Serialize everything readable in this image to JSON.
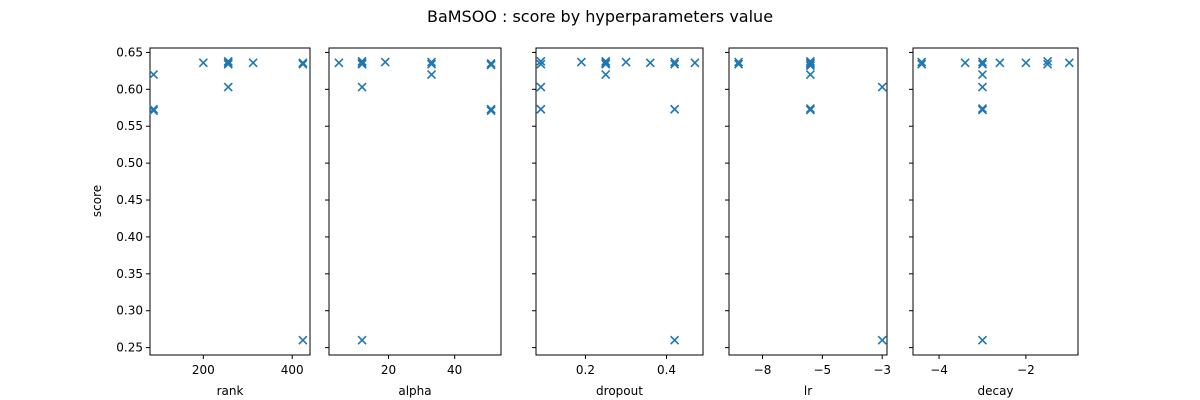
{
  "figure": {
    "title": "BaMSOO : score by hyperparameters value",
    "ylabel": "score",
    "marker_color": "#1f77b4"
  },
  "chart_data": [
    {
      "type": "scatter",
      "xlabel": "rank",
      "ylabel": "score",
      "xlim": [
        80,
        440
      ],
      "ylim": [
        0.24,
        0.656
      ],
      "xticks": [
        200,
        400
      ],
      "yticks": [
        0.25,
        0.3,
        0.35,
        0.4,
        0.45,
        0.5,
        0.55,
        0.6,
        0.65
      ],
      "points": [
        {
          "x": 88,
          "y": 0.62
        },
        {
          "x": 88,
          "y": 0.573
        },
        {
          "x": 88,
          "y": 0.571
        },
        {
          "x": 200,
          "y": 0.636
        },
        {
          "x": 256,
          "y": 0.638
        },
        {
          "x": 256,
          "y": 0.636
        },
        {
          "x": 256,
          "y": 0.634
        },
        {
          "x": 256,
          "y": 0.603
        },
        {
          "x": 312,
          "y": 0.636
        },
        {
          "x": 424,
          "y": 0.636
        },
        {
          "x": 424,
          "y": 0.634
        },
        {
          "x": 424,
          "y": 0.26
        }
      ]
    },
    {
      "type": "scatter",
      "xlabel": "alpha",
      "ylabel": "score",
      "xlim": [
        2,
        54
      ],
      "ylim": [
        0.24,
        0.656
      ],
      "xticks": [
        20,
        40
      ],
      "yticks": [
        0.25,
        0.3,
        0.35,
        0.4,
        0.45,
        0.5,
        0.55,
        0.6,
        0.65
      ],
      "points": [
        {
          "x": 5,
          "y": 0.636
        },
        {
          "x": 12,
          "y": 0.638
        },
        {
          "x": 12,
          "y": 0.636
        },
        {
          "x": 12,
          "y": 0.634
        },
        {
          "x": 12,
          "y": 0.603
        },
        {
          "x": 12,
          "y": 0.26
        },
        {
          "x": 19,
          "y": 0.637
        },
        {
          "x": 33,
          "y": 0.637
        },
        {
          "x": 33,
          "y": 0.634
        },
        {
          "x": 33,
          "y": 0.62
        },
        {
          "x": 51,
          "y": 0.635
        },
        {
          "x": 51,
          "y": 0.633
        },
        {
          "x": 51,
          "y": 0.573
        },
        {
          "x": 51,
          "y": 0.571
        }
      ]
    },
    {
      "type": "scatter",
      "xlabel": "dropout",
      "ylabel": "score",
      "xlim": [
        0.078,
        0.49
      ],
      "ylim": [
        0.24,
        0.656
      ],
      "xticks": [
        0.2,
        0.4
      ],
      "yticks": [
        0.25,
        0.3,
        0.35,
        0.4,
        0.45,
        0.5,
        0.55,
        0.6,
        0.65
      ],
      "points": [
        {
          "x": 0.09,
          "y": 0.638
        },
        {
          "x": 0.09,
          "y": 0.634
        },
        {
          "x": 0.09,
          "y": 0.603
        },
        {
          "x": 0.09,
          "y": 0.573
        },
        {
          "x": 0.19,
          "y": 0.637
        },
        {
          "x": 0.25,
          "y": 0.638
        },
        {
          "x": 0.25,
          "y": 0.636
        },
        {
          "x": 0.25,
          "y": 0.634
        },
        {
          "x": 0.25,
          "y": 0.62
        },
        {
          "x": 0.3,
          "y": 0.637
        },
        {
          "x": 0.36,
          "y": 0.636
        },
        {
          "x": 0.42,
          "y": 0.637
        },
        {
          "x": 0.42,
          "y": 0.634
        },
        {
          "x": 0.42,
          "y": 0.573
        },
        {
          "x": 0.42,
          "y": 0.26
        },
        {
          "x": 0.47,
          "y": 0.636
        }
      ]
    },
    {
      "type": "scatter",
      "xlabel": "lr",
      "ylabel": "score",
      "xlim": [
        -8.9,
        -2.3
      ],
      "ylim": [
        0.24,
        0.656
      ],
      "xticks": [
        -7.5,
        -5.0,
        -2.5
      ],
      "yticks": [
        0.25,
        0.3,
        0.35,
        0.4,
        0.45,
        0.5,
        0.55,
        0.6,
        0.65
      ],
      "points": [
        {
          "x": -8.5,
          "y": 0.637
        },
        {
          "x": -8.5,
          "y": 0.634
        },
        {
          "x": -5.5,
          "y": 0.638
        },
        {
          "x": -5.5,
          "y": 0.636
        },
        {
          "x": -5.5,
          "y": 0.634
        },
        {
          "x": -5.5,
          "y": 0.632
        },
        {
          "x": -5.5,
          "y": 0.62
        },
        {
          "x": -5.5,
          "y": 0.574
        },
        {
          "x": -5.5,
          "y": 0.572
        },
        {
          "x": -2.5,
          "y": 0.603
        },
        {
          "x": -2.5,
          "y": 0.26
        }
      ]
    },
    {
      "type": "scatter",
      "xlabel": "decay",
      "ylabel": "score",
      "xlim": [
        -4.6,
        -0.8
      ],
      "ylim": [
        0.24,
        0.656
      ],
      "xticks": [
        -4,
        -2
      ],
      "yticks": [
        0.25,
        0.3,
        0.35,
        0.4,
        0.45,
        0.5,
        0.55,
        0.6,
        0.65
      ],
      "points": [
        {
          "x": -4.4,
          "y": 0.637
        },
        {
          "x": -4.4,
          "y": 0.634
        },
        {
          "x": -3.4,
          "y": 0.636
        },
        {
          "x": -3.0,
          "y": 0.637
        },
        {
          "x": -3.0,
          "y": 0.634
        },
        {
          "x": -3.0,
          "y": 0.62
        },
        {
          "x": -3.0,
          "y": 0.603
        },
        {
          "x": -3.0,
          "y": 0.574
        },
        {
          "x": -3.0,
          "y": 0.572
        },
        {
          "x": -3.0,
          "y": 0.26
        },
        {
          "x": -2.6,
          "y": 0.636
        },
        {
          "x": -2.0,
          "y": 0.636
        },
        {
          "x": -1.5,
          "y": 0.638
        },
        {
          "x": -1.5,
          "y": 0.634
        },
        {
          "x": -1.0,
          "y": 0.636
        }
      ]
    }
  ]
}
